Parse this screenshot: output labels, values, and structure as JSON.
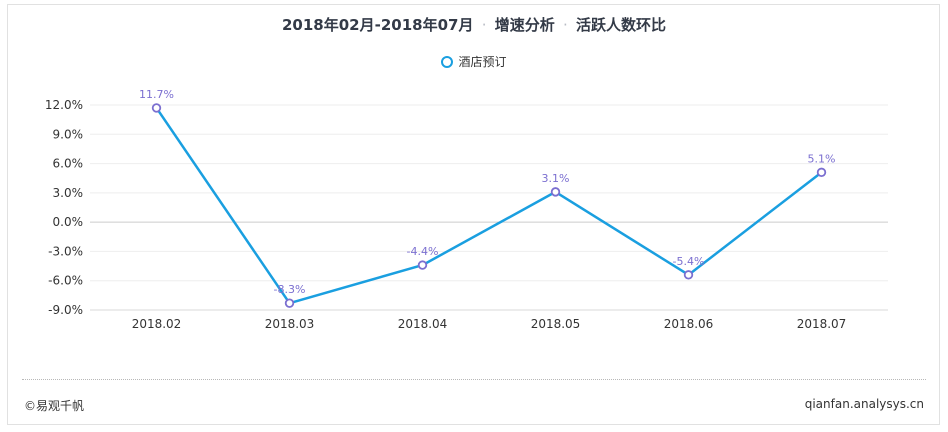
{
  "header": {
    "title_main": "2018年02月-2018年07月",
    "title_sep": "·",
    "title_part2": "增速分析",
    "title_part3": "活跃人数环比"
  },
  "legend": {
    "label": "酒店预订"
  },
  "footer": {
    "copyright": "©易观千帆",
    "site": "qianfan.analysys.cn"
  },
  "colors": {
    "line": "#1a9fe0",
    "marker": "#7b6fd0",
    "label": "#7b6fd0"
  },
  "chart_data": {
    "type": "line",
    "title": "2018年02月-2018年07月 · 增速分析 · 活跃人数环比",
    "categories": [
      "2018.02",
      "2018.03",
      "2018.04",
      "2018.05",
      "2018.06",
      "2018.07"
    ],
    "series": [
      {
        "name": "酒店预订",
        "values": [
          11.7,
          -8.3,
          -4.4,
          3.1,
          -5.4,
          5.1
        ],
        "labels": [
          "11.7%",
          "-8.3%",
          "-4.4%",
          "3.1%",
          "-5.4%",
          "5.1%"
        ]
      }
    ],
    "yticks": [
      12.0,
      9.0,
      6.0,
      3.0,
      0.0,
      -3.0,
      -6.0,
      -9.0
    ],
    "ytick_labels": [
      "12.0%",
      "9.0%",
      "6.0%",
      "3.0%",
      "0.0%",
      "-3.0%",
      "-6.0%",
      "-9.0%"
    ],
    "ylim": [
      -9,
      12
    ],
    "legend_position": "top-center",
    "grid": true
  }
}
